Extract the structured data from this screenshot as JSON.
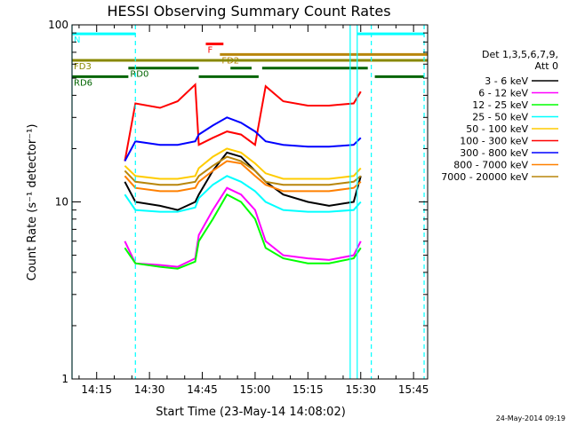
{
  "chart_data": {
    "type": "line",
    "title": "HESSI Observing Summary Count Rates",
    "xlabel": "Start Time (23-May-14 14:08:02)",
    "ylabel": "Count Rate (s⁻¹ detector⁻¹)",
    "y_scale": "log",
    "ylim": [
      1,
      100
    ],
    "xlim": [
      "14:08",
      "15:49"
    ],
    "x_ticks": [
      "14:15",
      "14:30",
      "14:45",
      "15:00",
      "15:15",
      "15:30",
      "15:45"
    ],
    "y_ticks": [
      "1",
      "10",
      "100"
    ],
    "legend_header": [
      "Det 1,3,5,6,7,9,",
      "Att 0"
    ],
    "legend_position": "right",
    "series": [
      {
        "name": "3 - 6 keV",
        "color": "#000000",
        "x": [
          "14:23",
          "14:26",
          "14:33",
          "14:38",
          "14:43",
          "14:44",
          "14:48",
          "14:52",
          "14:56",
          "15:00",
          "15:03",
          "15:08",
          "15:15",
          "15:21",
          "15:28",
          "15:30"
        ],
        "y": [
          13,
          10,
          9.5,
          9,
          10,
          11,
          15,
          19,
          18,
          15,
          13,
          11,
          10,
          9.5,
          10,
          14
        ]
      },
      {
        "name": "6 - 12 keV",
        "color": "#ff00ff",
        "x": [
          "14:23",
          "14:26",
          "14:33",
          "14:38",
          "14:43",
          "14:44",
          "14:48",
          "14:52",
          "14:56",
          "15:00",
          "15:03",
          "15:08",
          "15:15",
          "15:21",
          "15:28",
          "15:30"
        ],
        "y": [
          6,
          4.5,
          4.4,
          4.3,
          4.8,
          6.5,
          9,
          12,
          11,
          9,
          6,
          5,
          4.8,
          4.7,
          5,
          6
        ]
      },
      {
        "name": "12 - 25 keV",
        "color": "#00ff00",
        "x": [
          "14:23",
          "14:26",
          "14:33",
          "14:38",
          "14:43",
          "14:44",
          "14:48",
          "14:52",
          "14:56",
          "15:00",
          "15:03",
          "15:08",
          "15:15",
          "15:21",
          "15:28",
          "15:30"
        ],
        "y": [
          5.5,
          4.5,
          4.3,
          4.2,
          4.6,
          6,
          8,
          11,
          10,
          8,
          5.5,
          4.8,
          4.5,
          4.5,
          4.8,
          5.5
        ]
      },
      {
        "name": "25 - 50 keV",
        "color": "#00ffff",
        "x": [
          "14:23",
          "14:26",
          "14:33",
          "14:38",
          "14:43",
          "14:44",
          "14:48",
          "14:52",
          "14:56",
          "15:00",
          "15:03",
          "15:08",
          "15:15",
          "15:21",
          "15:28",
          "15:30"
        ],
        "y": [
          11,
          9,
          8.8,
          8.8,
          9.3,
          10.5,
          12.5,
          14,
          13,
          11.5,
          10,
          9,
          8.8,
          8.8,
          9,
          10
        ]
      },
      {
        "name": "50 - 100 keV",
        "color": "#ffcc00",
        "x": [
          "14:23",
          "14:26",
          "14:33",
          "14:38",
          "14:43",
          "14:44",
          "14:48",
          "14:52",
          "14:56",
          "15:00",
          "15:03",
          "15:08",
          "15:15",
          "15:21",
          "15:28",
          "15:30"
        ],
        "y": [
          16,
          14,
          13.5,
          13.5,
          14,
          15.5,
          18,
          20,
          19,
          16.5,
          14.5,
          13.5,
          13.5,
          13.5,
          14,
          15.5
        ]
      },
      {
        "name": "100 - 300 keV",
        "color": "#ff0000",
        "x": [
          "14:23",
          "14:26",
          "14:33",
          "14:38",
          "14:43",
          "14:44",
          "14:48",
          "14:52",
          "14:56",
          "15:00",
          "15:03",
          "15:08",
          "15:15",
          "15:21",
          "15:28",
          "15:30"
        ],
        "y": [
          17,
          36,
          34,
          37,
          46,
          21,
          23,
          25,
          24,
          21,
          45,
          37,
          35,
          35,
          36,
          42
        ]
      },
      {
        "name": "300 - 800 keV",
        "color": "#0000ff",
        "x": [
          "14:23",
          "14:26",
          "14:33",
          "14:38",
          "14:43",
          "14:44",
          "14:48",
          "14:52",
          "14:56",
          "15:00",
          "15:03",
          "15:08",
          "15:15",
          "15:21",
          "15:28",
          "15:30"
        ],
        "y": [
          17,
          22,
          21,
          21,
          22,
          24,
          27,
          30,
          28,
          25,
          22,
          21,
          20.5,
          20.5,
          21,
          23
        ]
      },
      {
        "name": "800 - 7000 keV",
        "color": "#ff8000",
        "x": [
          "14:23",
          "14:26",
          "14:33",
          "14:38",
          "14:43",
          "14:44",
          "14:48",
          "14:52",
          "14:56",
          "15:00",
          "15:03",
          "15:08",
          "15:15",
          "15:21",
          "15:28",
          "15:30"
        ],
        "y": [
          14,
          12,
          11.5,
          11.5,
          12,
          13,
          15,
          17,
          16.5,
          14,
          12.5,
          11.5,
          11.5,
          11.5,
          12,
          13
        ]
      },
      {
        "name": "7000 - 20000 keV",
        "color": "#b8860b",
        "x": [
          "14:23",
          "14:26",
          "14:33",
          "14:38",
          "14:43",
          "14:44",
          "14:48",
          "14:52",
          "14:56",
          "15:00",
          "15:03",
          "15:08",
          "15:15",
          "15:21",
          "15:28",
          "15:30"
        ],
        "y": [
          15,
          13,
          12.5,
          12.5,
          13,
          14,
          16,
          18,
          17,
          15,
          13,
          12.5,
          12.5,
          12.5,
          13,
          14
        ]
      }
    ],
    "flag_bars": [
      {
        "label": "N",
        "color": "#00ffff",
        "y": 89,
        "segments": [
          [
            "14:08",
            "14:26"
          ],
          [
            "15:29",
            "15:48"
          ]
        ]
      },
      {
        "label": "F",
        "color": "#ff0000",
        "y": 78,
        "segments": [
          [
            "14:46",
            "14:51"
          ]
        ]
      },
      {
        "label": "FD2",
        "color": "#b8860b",
        "y": 68,
        "segments": [
          [
            "14:50",
            "15:49"
          ]
        ]
      },
      {
        "label": "FD3",
        "color": "#888800",
        "y": 63,
        "segments": [
          [
            "14:08",
            "15:49"
          ]
        ]
      },
      {
        "label": "RD0",
        "color": "#006400",
        "y": 57,
        "segments": [
          [
            "14:24",
            "14:44"
          ],
          [
            "14:53",
            "14:59"
          ],
          [
            "15:02",
            "15:32"
          ]
        ]
      },
      {
        "label": "RD6",
        "color": "#006400",
        "y": 51,
        "segments": [
          [
            "14:08",
            "14:24"
          ],
          [
            "14:44",
            "15:01"
          ],
          [
            "15:34",
            "15:48"
          ]
        ]
      }
    ],
    "vertical_lines": [
      {
        "color": "#00ffff",
        "style": "solid",
        "x": "14:08"
      },
      {
        "color": "#00ffff",
        "style": "dashed",
        "x": "14:26"
      },
      {
        "color": "#00ffff",
        "style": "solid",
        "x": "15:27"
      },
      {
        "color": "#00ffff",
        "style": "solid",
        "x": "15:29"
      },
      {
        "color": "#00ffff",
        "style": "dashed",
        "x": "15:33"
      },
      {
        "color": "#00ffff",
        "style": "dashed",
        "x": "15:48"
      }
    ]
  },
  "footer_timestamp": "24-May-2014 09:19"
}
